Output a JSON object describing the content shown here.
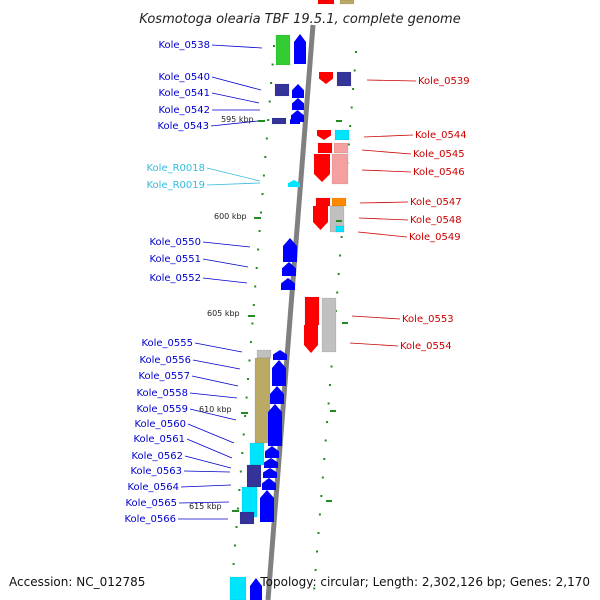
{
  "title": "Kosmotoga olearia TBF 19.5.1, complete genome",
  "accession": "Accession: NC_012785",
  "summary": "Topology: circular; Length: 2,302,126 bp; Genes: 2,170",
  "colors": {
    "blue_label": "#0000cc",
    "red_label": "#cc0000",
    "rna_label": "#33bbdd",
    "gene_blue": "#0000ff",
    "gene_red": "#ff0000",
    "gene_pink": "#f4a0a0",
    "gene_green": "#33cc33",
    "gene_navy": "#333399",
    "gene_cyan": "#00e5ff",
    "gene_tan": "#bbaa66",
    "gene_gray": "#c0c0c0",
    "gene_orange": "#ff8800",
    "tick_green": "#228b22",
    "backbone": "#808080"
  },
  "scale_labels": [
    "595 kbp",
    "600 kbp",
    "605 kbp",
    "610 kbp",
    "615 kbp"
  ],
  "left_genes": [
    "Kole_0538",
    "Kole_0540",
    "Kole_0541",
    "Kole_0542",
    "Kole_0543",
    "Kole_0550",
    "Kole_0551",
    "Kole_0552",
    "Kole_0555",
    "Kole_0556",
    "Kole_0557",
    "Kole_0558",
    "Kole_0559",
    "Kole_0560",
    "Kole_0561",
    "Kole_0562",
    "Kole_0563",
    "Kole_0564",
    "Kole_0565",
    "Kole_0566"
  ],
  "rna_genes": [
    "Kole_R0018",
    "Kole_R0019"
  ],
  "right_genes": [
    "Kole_0539",
    "Kole_0544",
    "Kole_0545",
    "Kole_0546",
    "Kole_0547",
    "Kole_0548",
    "Kole_0549",
    "Kole_0553",
    "Kole_0554"
  ]
}
